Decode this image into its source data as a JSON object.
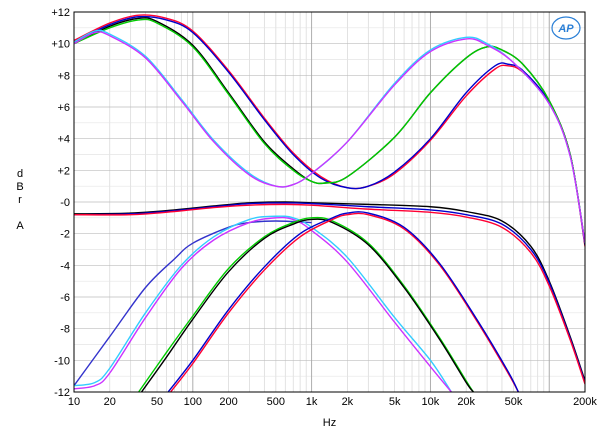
{
  "chart_data": {
    "type": "line",
    "title": "",
    "xlabel": "Hz",
    "ylabel": [
      "d",
      "B",
      "r",
      "",
      "A"
    ],
    "x_scale": "log",
    "xlim": [
      10,
      200000
    ],
    "ylim": [
      -12,
      12
    ],
    "grid": true,
    "logo": "AP",
    "x_ticks": [
      {
        "v": 10,
        "label": "10"
      },
      {
        "v": 20,
        "label": "20"
      },
      {
        "v": 50,
        "label": "50"
      },
      {
        "v": 100,
        "label": "100"
      },
      {
        "v": 200,
        "label": "200"
      },
      {
        "v": 500,
        "label": "500"
      },
      {
        "v": 1000,
        "label": "1k"
      },
      {
        "v": 2000,
        "label": "2k"
      },
      {
        "v": 5000,
        "label": "5k"
      },
      {
        "v": 10000,
        "label": "10k"
      },
      {
        "v": 20000,
        "label": "20k"
      },
      {
        "v": 50000,
        "label": "50k"
      },
      {
        "v": 200000,
        "label": "200k"
      }
    ],
    "y_ticks": [
      {
        "v": 12,
        "label": "+12"
      },
      {
        "v": 10,
        "label": "+10"
      },
      {
        "v": 8,
        "label": "+8"
      },
      {
        "v": 6,
        "label": "+6"
      },
      {
        "v": 4,
        "label": "+4"
      },
      {
        "v": 2,
        "label": "+2"
      },
      {
        "v": 0,
        "label": "-0"
      },
      {
        "v": -2,
        "label": "-2"
      },
      {
        "v": -4,
        "label": "-4"
      },
      {
        "v": -6,
        "label": "-6"
      },
      {
        "v": -8,
        "label": "-8"
      },
      {
        "v": -10,
        "label": "-10"
      },
      {
        "v": -12,
        "label": "-12"
      }
    ],
    "series": [
      {
        "color": "#ff0033",
        "points": [
          [
            10,
            10.2
          ],
          [
            20,
            11.3
          ],
          [
            35,
            11.8
          ],
          [
            60,
            11.6
          ],
          [
            100,
            10.8
          ],
          [
            200,
            8.3
          ],
          [
            400,
            5.3
          ],
          [
            700,
            3.1
          ],
          [
            1200,
            1.6
          ],
          [
            2000,
            0.9
          ],
          [
            3000,
            1.0
          ],
          [
            5000,
            1.8
          ],
          [
            10000,
            3.9
          ],
          [
            20000,
            6.7
          ],
          [
            35000,
            8.4
          ],
          [
            45000,
            8.6
          ],
          [
            60000,
            8.2
          ],
          [
            100000,
            6.3
          ],
          [
            150000,
            3.0
          ],
          [
            200000,
            -2.8
          ]
        ]
      },
      {
        "color": "#0000cc",
        "points": [
          [
            10,
            10.1
          ],
          [
            20,
            11.2
          ],
          [
            35,
            11.7
          ],
          [
            60,
            11.5
          ],
          [
            100,
            10.7
          ],
          [
            200,
            8.2
          ],
          [
            400,
            5.2
          ],
          [
            700,
            3.0
          ],
          [
            1200,
            1.5
          ],
          [
            2000,
            0.9
          ],
          [
            3000,
            1.0
          ],
          [
            5000,
            1.9
          ],
          [
            10000,
            4.0
          ],
          [
            20000,
            6.9
          ],
          [
            35000,
            8.6
          ],
          [
            45000,
            8.7
          ],
          [
            60000,
            8.3
          ],
          [
            100000,
            6.3
          ],
          [
            150000,
            3.0
          ],
          [
            200000,
            -2.7
          ]
        ]
      },
      {
        "color": "#000000",
        "points": [
          [
            10,
            10.0
          ],
          [
            20,
            11.1
          ],
          [
            35,
            11.6
          ],
          [
            50,
            11.4
          ],
          [
            100,
            9.9
          ],
          [
            200,
            6.9
          ],
          [
            400,
            3.8
          ],
          [
            700,
            2.1
          ],
          [
            1000,
            1.3
          ],
          [
            1300,
            1.2
          ],
          [
            2000,
            1.6
          ],
          [
            5000,
            4.1
          ],
          [
            10000,
            6.9
          ],
          [
            20000,
            9.1
          ],
          [
            30000,
            9.8
          ],
          [
            40000,
            9.6
          ],
          [
            60000,
            8.7
          ],
          [
            100000,
            6.4
          ],
          [
            150000,
            3.0
          ],
          [
            200000,
            -2.6
          ]
        ]
      },
      {
        "color": "#00cc00",
        "points": [
          [
            10,
            10.0
          ],
          [
            20,
            11.0
          ],
          [
            35,
            11.5
          ],
          [
            50,
            11.3
          ],
          [
            100,
            9.8
          ],
          [
            200,
            6.8
          ],
          [
            400,
            3.7
          ],
          [
            700,
            2.0
          ],
          [
            1000,
            1.3
          ],
          [
            1300,
            1.2
          ],
          [
            2000,
            1.6
          ],
          [
            5000,
            4.1
          ],
          [
            10000,
            6.9
          ],
          [
            20000,
            9.1
          ],
          [
            30000,
            9.8
          ],
          [
            40000,
            9.6
          ],
          [
            60000,
            8.7
          ],
          [
            100000,
            6.4
          ],
          [
            150000,
            3.0
          ],
          [
            200000,
            -2.6
          ]
        ]
      },
      {
        "color": "#33ccff",
        "points": [
          [
            10,
            10.1
          ],
          [
            15,
            10.8
          ],
          [
            20,
            10.6
          ],
          [
            40,
            9.2
          ],
          [
            80,
            6.5
          ],
          [
            150,
            3.9
          ],
          [
            300,
            1.8
          ],
          [
            500,
            1.0
          ],
          [
            700,
            1.1
          ],
          [
            1000,
            1.8
          ],
          [
            2000,
            3.8
          ],
          [
            5000,
            7.5
          ],
          [
            10000,
            9.6
          ],
          [
            20000,
            10.4
          ],
          [
            30000,
            10.0
          ],
          [
            50000,
            8.8
          ],
          [
            100000,
            6.2
          ],
          [
            150000,
            2.9
          ],
          [
            200000,
            -2.6
          ]
        ]
      },
      {
        "color": "#cc33ff",
        "points": [
          [
            10,
            10.0
          ],
          [
            15,
            10.7
          ],
          [
            20,
            10.5
          ],
          [
            40,
            9.1
          ],
          [
            80,
            6.4
          ],
          [
            150,
            3.8
          ],
          [
            300,
            1.7
          ],
          [
            500,
            1.0
          ],
          [
            700,
            1.1
          ],
          [
            1000,
            1.8
          ],
          [
            2000,
            3.8
          ],
          [
            5000,
            7.4
          ],
          [
            10000,
            9.5
          ],
          [
            20000,
            10.3
          ],
          [
            30000,
            9.9
          ],
          [
            50000,
            8.8
          ],
          [
            100000,
            6.2
          ],
          [
            150000,
            2.9
          ],
          [
            200000,
            -2.6
          ]
        ]
      },
      {
        "color": "#000000",
        "points": [
          [
            10,
            -0.75
          ],
          [
            30,
            -0.7
          ],
          [
            70,
            -0.5
          ],
          [
            150,
            -0.25
          ],
          [
            300,
            -0.05
          ],
          [
            600,
            0.0
          ],
          [
            1000,
            -0.05
          ],
          [
            3000,
            -0.15
          ],
          [
            10000,
            -0.3
          ],
          [
            20000,
            -0.6
          ],
          [
            40000,
            -1.2
          ],
          [
            70000,
            -2.8
          ],
          [
            100000,
            -5.0
          ],
          [
            150000,
            -8.5
          ],
          [
            200000,
            -11.3
          ]
        ]
      },
      {
        "color": "#0000cc",
        "points": [
          [
            10,
            -0.8
          ],
          [
            30,
            -0.75
          ],
          [
            70,
            -0.55
          ],
          [
            150,
            -0.3
          ],
          [
            300,
            -0.1
          ],
          [
            600,
            -0.05
          ],
          [
            1000,
            -0.1
          ],
          [
            3000,
            -0.3
          ],
          [
            10000,
            -0.5
          ],
          [
            20000,
            -0.8
          ],
          [
            40000,
            -1.4
          ],
          [
            70000,
            -3.0
          ],
          [
            100000,
            -5.1
          ],
          [
            150000,
            -8.6
          ],
          [
            200000,
            -11.4
          ]
        ]
      },
      {
        "color": "#ff0033",
        "points": [
          [
            10,
            -0.8
          ],
          [
            30,
            -0.8
          ],
          [
            70,
            -0.6
          ],
          [
            150,
            -0.35
          ],
          [
            300,
            -0.2
          ],
          [
            600,
            -0.15
          ],
          [
            1000,
            -0.2
          ],
          [
            3000,
            -0.45
          ],
          [
            10000,
            -0.65
          ],
          [
            20000,
            -0.95
          ],
          [
            40000,
            -1.6
          ],
          [
            70000,
            -3.2
          ],
          [
            100000,
            -5.3
          ],
          [
            150000,
            -8.7
          ],
          [
            200000,
            -11.5
          ]
        ]
      },
      {
        "color": "#3333cc",
        "points": [
          [
            10,
            -11.6
          ],
          [
            20,
            -8.5
          ],
          [
            40,
            -5.4
          ],
          [
            70,
            -3.6
          ],
          [
            100,
            -2.6
          ],
          [
            200,
            -1.6
          ],
          [
            300,
            -1.3
          ],
          [
            500,
            -1.2
          ],
          [
            1000,
            -1.3
          ]
        ]
      },
      {
        "color": "#33ccff",
        "points": [
          [
            10,
            -11.6
          ],
          [
            15,
            -11.4
          ],
          [
            20,
            -10.5
          ],
          [
            40,
            -7.0
          ],
          [
            80,
            -4.0
          ],
          [
            150,
            -2.2
          ],
          [
            300,
            -1.1
          ],
          [
            500,
            -0.9
          ],
          [
            700,
            -1.0
          ],
          [
            1000,
            -1.6
          ],
          [
            2000,
            -3.5
          ],
          [
            5000,
            -7.3
          ],
          [
            10000,
            -10.0
          ],
          [
            15000,
            -12.0
          ]
        ]
      },
      {
        "color": "#cc33ff",
        "points": [
          [
            10,
            -11.8
          ],
          [
            15,
            -11.6
          ],
          [
            20,
            -10.8
          ],
          [
            40,
            -7.3
          ],
          [
            80,
            -4.2
          ],
          [
            150,
            -2.4
          ],
          [
            300,
            -1.3
          ],
          [
            500,
            -1.0
          ],
          [
            700,
            -1.1
          ],
          [
            1000,
            -1.8
          ],
          [
            2000,
            -3.8
          ],
          [
            5000,
            -7.6
          ],
          [
            10000,
            -10.4
          ],
          [
            15000,
            -12.0
          ]
        ]
      },
      {
        "color": "#00cc00",
        "points": [
          [
            35,
            -12.0
          ],
          [
            60,
            -9.5
          ],
          [
            100,
            -7.2
          ],
          [
            200,
            -4.2
          ],
          [
            400,
            -2.2
          ],
          [
            700,
            -1.3
          ],
          [
            1000,
            -1.0
          ],
          [
            1500,
            -1.2
          ],
          [
            3000,
            -2.6
          ],
          [
            6000,
            -5.3
          ],
          [
            12000,
            -8.6
          ],
          [
            20000,
            -11.3
          ],
          [
            23000,
            -12.0
          ]
        ]
      },
      {
        "color": "#000000",
        "points": [
          [
            37,
            -12.0
          ],
          [
            60,
            -9.8
          ],
          [
            100,
            -7.4
          ],
          [
            200,
            -4.4
          ],
          [
            400,
            -2.3
          ],
          [
            700,
            -1.4
          ],
          [
            1000,
            -1.1
          ],
          [
            1500,
            -1.3
          ],
          [
            3000,
            -2.7
          ],
          [
            6000,
            -5.4
          ],
          [
            12000,
            -8.7
          ],
          [
            20000,
            -11.4
          ],
          [
            23000,
            -12.0
          ]
        ]
      },
      {
        "color": "#ff0033",
        "points": [
          [
            65,
            -12.0
          ],
          [
            100,
            -10.2
          ],
          [
            200,
            -7.0
          ],
          [
            400,
            -4.3
          ],
          [
            800,
            -2.2
          ],
          [
            1500,
            -1.1
          ],
          [
            2000,
            -0.8
          ],
          [
            3000,
            -0.8
          ],
          [
            6000,
            -1.7
          ],
          [
            12000,
            -4.0
          ],
          [
            25000,
            -7.6
          ],
          [
            45000,
            -10.8
          ],
          [
            55000,
            -12.0
          ]
        ]
      },
      {
        "color": "#0000cc",
        "points": [
          [
            62,
            -12.0
          ],
          [
            100,
            -10.0
          ],
          [
            200,
            -6.8
          ],
          [
            400,
            -4.1
          ],
          [
            800,
            -2.0
          ],
          [
            1500,
            -1.0
          ],
          [
            2000,
            -0.7
          ],
          [
            3000,
            -0.7
          ],
          [
            6000,
            -1.6
          ],
          [
            12000,
            -3.9
          ],
          [
            25000,
            -7.5
          ],
          [
            45000,
            -10.7
          ],
          [
            55000,
            -12.0
          ]
        ]
      }
    ]
  }
}
